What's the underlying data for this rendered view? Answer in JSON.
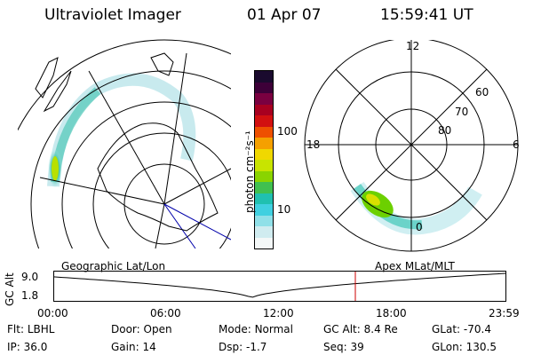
{
  "header": {
    "title": "Ultraviolet Imager",
    "date": "01 Apr 07",
    "time": "15:59:41 UT"
  },
  "colorbar": {
    "unit_label": "photon cm⁻²s⁻¹",
    "ticks": [
      "100",
      "10"
    ],
    "colors": [
      "#1a0a2e",
      "#3d0038",
      "#7a0040",
      "#a80020",
      "#d21010",
      "#ee5000",
      "#f5a000",
      "#f0d800",
      "#c8e400",
      "#8ad400",
      "#40c050",
      "#20c0b0",
      "#40d0e0",
      "#90e0e8",
      "#d0ecf0",
      "#f4f8f8"
    ]
  },
  "polar_plot": {
    "mlt_labels": {
      "top": "12",
      "left": "18",
      "right": "6",
      "bottom": "0"
    },
    "lat_labels": [
      "60",
      "70",
      "80"
    ]
  },
  "timeline": {
    "left_label": "Geographic Lat/Lon",
    "right_label": "Apex MLat/MLT",
    "axis_title": "GC Alt",
    "y_ticks": [
      "9.0",
      "1.8"
    ],
    "x_ticks": [
      "00:00",
      "06:00",
      "12:00",
      "18:00",
      "23:59"
    ],
    "current_time_hours": 16.0,
    "marker_color": "#cc0000"
  },
  "footer": {
    "row1": [
      {
        "label": "Flt:",
        "value": "LBHL"
      },
      {
        "label": "Door:",
        "value": "Open"
      },
      {
        "label": "Mode:",
        "value": "Normal"
      },
      {
        "label": "GC Alt:",
        "value": "8.4 Re"
      },
      {
        "label": "GLat:",
        "value": "-70.4"
      }
    ],
    "row2": [
      {
        "label": "IP:",
        "value": "36.0"
      },
      {
        "label": "Gain:",
        "value": "14"
      },
      {
        "label": "Dsp:",
        "value": "-1.7"
      },
      {
        "label": "Seq:",
        "value": "39"
      },
      {
        "label": "GLon:",
        "value": "130.5"
      }
    ]
  }
}
